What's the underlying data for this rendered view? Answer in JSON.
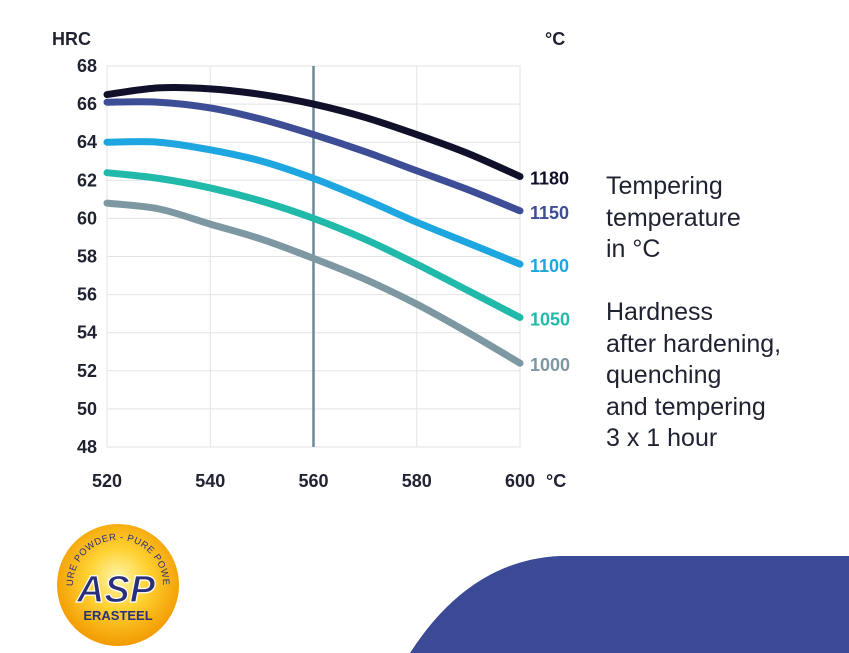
{
  "chart_data": {
    "type": "line",
    "x": [
      520,
      530,
      540,
      550,
      560,
      570,
      580,
      590,
      600
    ],
    "xlim": [
      520,
      600
    ],
    "ylim": [
      48,
      68
    ],
    "xticks": [
      "520",
      "540",
      "560",
      "580",
      "600"
    ],
    "yticks": [
      "68",
      "66",
      "64",
      "62",
      "60",
      "58",
      "56",
      "54",
      "52",
      "50",
      "48"
    ],
    "xlabel": "°C",
    "ylabel": "HRC",
    "y2label": "°C",
    "reference_line_x": 560,
    "grid": true,
    "series": [
      {
        "name": "1180",
        "color": "#10102a",
        "values": [
          66.5,
          66.85,
          66.8,
          66.5,
          66.0,
          65.3,
          64.4,
          63.4,
          62.2
        ]
      },
      {
        "name": "1150",
        "color": "#3d4d96",
        "values": [
          66.1,
          66.1,
          65.8,
          65.2,
          64.4,
          63.5,
          62.5,
          61.5,
          60.4
        ]
      },
      {
        "name": "1100",
        "color": "#1ea6e0",
        "values": [
          64.0,
          64.0,
          63.6,
          63.0,
          62.1,
          61.0,
          59.8,
          58.7,
          57.6
        ]
      },
      {
        "name": "1050",
        "color": "#20b9aa",
        "values": [
          62.4,
          62.1,
          61.6,
          60.9,
          60.0,
          58.9,
          57.6,
          56.2,
          54.8
        ]
      },
      {
        "name": "1000",
        "color": "#7d97a3",
        "values": [
          60.8,
          60.5,
          59.7,
          58.9,
          57.9,
          56.8,
          55.5,
          54.0,
          52.4
        ]
      }
    ]
  },
  "side_text": {
    "tempering": "Tempering\ntemperature\nin °C",
    "hardness": "Hardness\nafter hardening,\nquenching\nand tempering\n3 x 1 hour"
  },
  "logo": {
    "ring_text": "PURE POWDER - PURE POWER",
    "main": "ASP",
    "sub": "ERASTEEL"
  },
  "colors": {
    "accent_arc": "#3b4a95",
    "grid": "#e3e3e3",
    "reference_line": "#6f8996"
  }
}
